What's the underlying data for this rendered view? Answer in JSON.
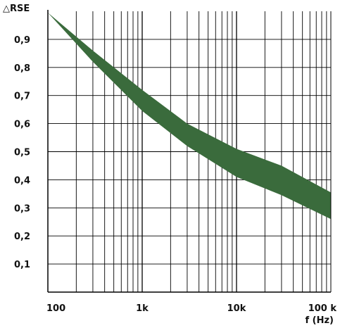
{
  "chart_data": {
    "type": "area",
    "ylabel": "△RSE",
    "xlabel": "f (Hz)",
    "x_scale": "log",
    "xlim": [
      100,
      100000
    ],
    "ylim": [
      0,
      1.0
    ],
    "grid": true,
    "x_tick_labels": [
      {
        "value": 100,
        "label": "100"
      },
      {
        "value": 1000,
        "label": "1k"
      },
      {
        "value": 10000,
        "label": "10k"
      },
      {
        "value": 100000,
        "label": "100 k"
      }
    ],
    "y_tick_labels": [
      {
        "value": 0.1,
        "label": "0,1"
      },
      {
        "value": 0.2,
        "label": "0,2"
      },
      {
        "value": 0.3,
        "label": "0,3"
      },
      {
        "value": 0.4,
        "label": "0,4"
      },
      {
        "value": 0.5,
        "label": "0,5"
      },
      {
        "value": 0.6,
        "label": "0,6"
      },
      {
        "value": 0.7,
        "label": "0,7"
      },
      {
        "value": 0.8,
        "label": "0,8"
      },
      {
        "value": 0.9,
        "label": "0,9"
      }
    ],
    "band_color": "#3a6b3c",
    "series": [
      {
        "upper": [
          {
            "x": 100,
            "y": 0.995
          },
          {
            "x": 300,
            "y": 0.86
          },
          {
            "x": 1000,
            "y": 0.72
          },
          {
            "x": 3000,
            "y": 0.6
          },
          {
            "x": 10000,
            "y": 0.51
          },
          {
            "x": 30000,
            "y": 0.45
          },
          {
            "x": 100000,
            "y": 0.355
          }
        ],
        "lower": [
          {
            "x": 100,
            "y": 0.995
          },
          {
            "x": 300,
            "y": 0.82
          },
          {
            "x": 1000,
            "y": 0.645
          },
          {
            "x": 3000,
            "y": 0.52
          },
          {
            "x": 10000,
            "y": 0.41
          },
          {
            "x": 30000,
            "y": 0.345
          },
          {
            "x": 100000,
            "y": 0.26
          }
        ]
      }
    ]
  }
}
